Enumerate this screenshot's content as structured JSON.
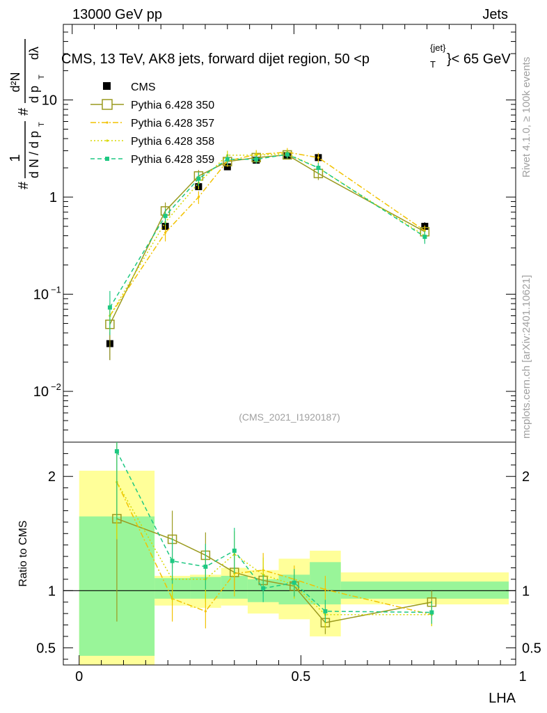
{
  "header": {
    "left": "13000 GeV pp",
    "right": "Jets"
  },
  "side_labels": {
    "rivet": "Rivet 4.1.0, ≥ 100k events",
    "mcplots": "mcplots.cern.ch [arXiv:2401.10621]"
  },
  "analysis_id": "(CMS_2021_I1920187)",
  "chart_data": [
    {
      "panel": "main",
      "type": "scatter",
      "title_parts": {
        "main": "CMS, 13 TeV, AK8 jets, forward dijet region, 50 <p",
        "sup": "{jet}",
        "sub": "T",
        "tail": "}< 65 GeV"
      },
      "ylabel_parts": {
        "one": "1",
        "hash": "#",
        "dNdpT": "d N / d p",
        "T": "T",
        "d2N": "d²N",
        "dpT": "d p",
        "dlam": "dλ"
      },
      "xlabel": "LHA",
      "yscale": "log",
      "ylim": [
        0.003,
        60
      ],
      "xlim": [
        -0.02,
        1.0
      ],
      "yticks": [
        {
          "value": 0.01,
          "label": "10",
          "exp": "−2"
        },
        {
          "value": 0.1,
          "label": "10",
          "exp": "−1"
        },
        {
          "value": 1,
          "label": "1",
          "exp": ""
        },
        {
          "value": 10,
          "label": "10",
          "exp": ""
        }
      ],
      "bins": [
        0.0,
        0.17,
        0.25,
        0.32,
        0.38,
        0.45,
        0.52,
        0.59,
        1.0
      ],
      "x": [
        0.085,
        0.21,
        0.285,
        0.35,
        0.415,
        0.485,
        0.555,
        0.795
      ],
      "legend": {
        "placement": "top-left"
      },
      "series": [
        {
          "name": "CMS",
          "color": "#000000",
          "style": "data",
          "values": [
            0.031,
            0.5,
            1.28,
            2.05,
            2.4,
            2.68,
            2.55,
            0.5
          ],
          "err": [
            0.01,
            0.05,
            0.1,
            0.12,
            0.15,
            0.2,
            0.2,
            0.05
          ]
        },
        {
          "name": "Pythia 6.428 350",
          "color": "#9a9a1e",
          "style": "solid-open-square",
          "values": [
            0.049,
            0.72,
            1.65,
            2.32,
            2.55,
            2.72,
            1.75,
            0.44
          ],
          "err": [
            0.028,
            0.16,
            0.25,
            0.25,
            0.2,
            0.2,
            0.25,
            0.06
          ]
        },
        {
          "name": "Pythia 6.428 357",
          "color": "#f2c200",
          "style": "dashdot",
          "values": [
            0.06,
            0.43,
            1.0,
            2.35,
            2.75,
            2.9,
            2.55,
            0.45
          ],
          "err": [
            0.02,
            0.08,
            0.15,
            0.3,
            0.3,
            0.3,
            0.3,
            0.06
          ]
        },
        {
          "name": "Pythia 6.428 358",
          "color": "#d8d800",
          "style": "dotted",
          "values": [
            0.06,
            0.55,
            1.4,
            2.7,
            2.7,
            2.8,
            2.0,
            0.4
          ],
          "err": [
            0.02,
            0.08,
            0.2,
            0.3,
            0.3,
            0.3,
            0.25,
            0.05
          ]
        },
        {
          "name": "Pythia 6.428 359",
          "color": "#1ec882",
          "style": "dashed-filled-square",
          "values": [
            0.073,
            0.64,
            1.55,
            2.45,
            2.45,
            2.75,
            2.0,
            0.39
          ],
          "err": [
            0.035,
            0.12,
            0.25,
            0.3,
            0.25,
            0.25,
            0.25,
            0.06
          ]
        }
      ]
    },
    {
      "panel": "ratio",
      "type": "line",
      "ylabel": "Ratio to CMS",
      "xlabel": "LHA",
      "ylim": [
        0.35,
        2.3
      ],
      "xlim": [
        -0.02,
        1.0
      ],
      "yticks": [
        0.5,
        1,
        2
      ],
      "xticks": [
        {
          "value": 0,
          "label": "0"
        },
        {
          "value": 0.5,
          "label": "0.5"
        },
        {
          "value": 1,
          "label": "1"
        }
      ],
      "bands": {
        "inner": {
          "color": "#99f599",
          "low": [
            0.43,
            0.93,
            0.93,
            0.93,
            0.9,
            0.88,
            0.88,
            0.93
          ],
          "high": [
            1.65,
            1.11,
            1.12,
            1.13,
            1.1,
            1.14,
            1.25,
            1.08
          ]
        },
        "outer": {
          "color": "#ffff99",
          "low": [
            0.35,
            0.87,
            0.85,
            0.87,
            0.8,
            0.75,
            0.6,
            0.88
          ],
          "high": [
            2.05,
            1.13,
            1.14,
            1.2,
            1.18,
            1.28,
            1.35,
            1.16
          ]
        }
      },
      "series": [
        {
          "name": "Pythia 6.428 350",
          "color": "#9a9a1e",
          "values": [
            1.63,
            1.45,
            1.31,
            1.16,
            1.09,
            1.04,
            0.72,
            0.9
          ],
          "err": [
            0.9,
            0.25,
            0.2,
            0.15,
            0.12,
            0.1,
            0.1,
            0.1
          ]
        },
        {
          "name": "Pythia 6.428 357",
          "color": "#f2c200",
          "values": [
            1.95,
            0.93,
            0.82,
            1.15,
            1.18,
            1.1,
            1.01,
            0.79
          ],
          "err": [
            0.5,
            0.2,
            0.15,
            0.2,
            0.15,
            0.12,
            0.12,
            0.1
          ]
        },
        {
          "name": "Pythia 6.428 358",
          "color": "#d8d800",
          "values": [
            1.95,
            1.1,
            1.1,
            1.32,
            1.14,
            1.05,
            0.79,
            0.79
          ],
          "err": [
            0.5,
            0.2,
            0.2,
            0.2,
            0.15,
            0.12,
            0.12,
            0.1
          ]
        },
        {
          "name": "Pythia 6.428 359",
          "color": "#1ec882",
          "values": [
            2.22,
            1.26,
            1.21,
            1.35,
            1.02,
            1.07,
            0.82,
            0.81
          ],
          "err": [
            0.6,
            0.2,
            0.2,
            0.2,
            0.12,
            0.12,
            0.1,
            0.1
          ]
        }
      ]
    }
  ]
}
